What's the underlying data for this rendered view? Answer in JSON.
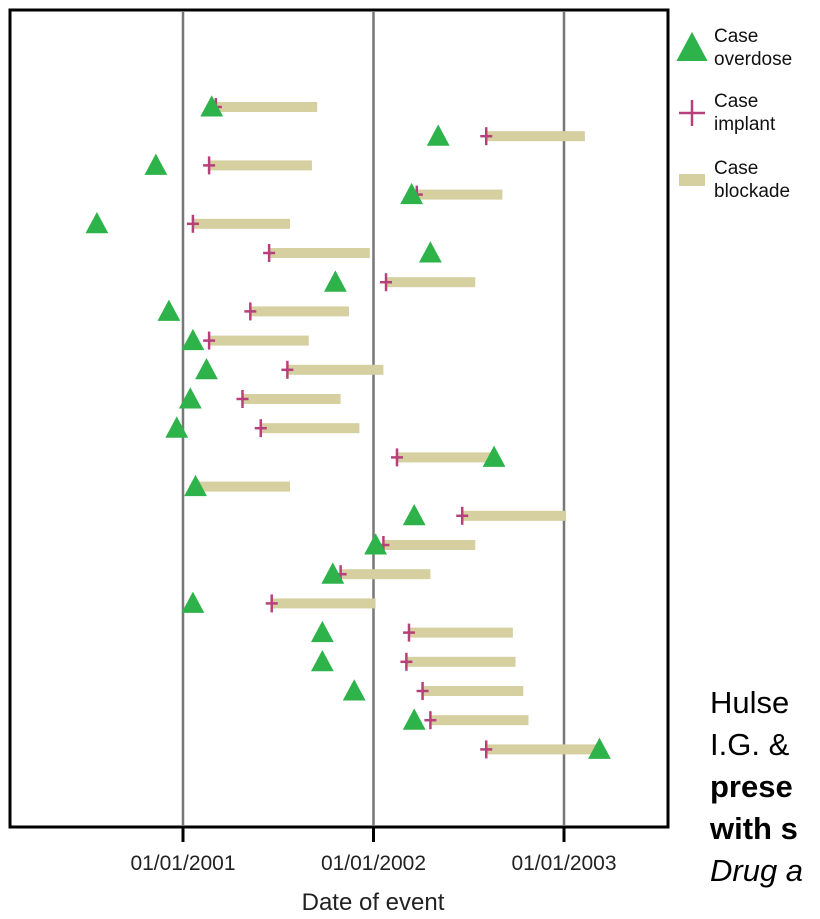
{
  "chart_data": {
    "type": "scatter",
    "title": "",
    "xlabel": "Date of event",
    "ylabel": "",
    "x_axis": {
      "type": "date",
      "ticks": [
        "2001-01-01",
        "2002-01-01",
        "2003-01-01"
      ],
      "tick_labels": [
        "01/01/2001",
        "01/01/2002",
        "01/01/2003"
      ],
      "range": [
        "2000-02-15",
        "2003-07-15"
      ]
    },
    "grid": "vertical lines at tick dates",
    "legend": {
      "placement": "right",
      "entries": [
        {
          "label_lines": [
            "Case",
            "overdose"
          ],
          "marker": "triangle",
          "color": "#2db34a"
        },
        {
          "label_lines": [
            "Case",
            "implant"
          ],
          "marker": "plus",
          "color": "#b8407a"
        },
        {
          "label_lines": [
            "Case",
            "blockade"
          ],
          "marker": "bar",
          "color": "#d6cfa0"
        }
      ]
    },
    "colors": {
      "overdose": "#2db34a",
      "implant": "#b8407a",
      "blockade": "#d6cfa0"
    },
    "cases": [
      {
        "overdose": "2001-02-25",
        "implant": "2001-03-05",
        "blockade_end": "2001-09-15"
      },
      {
        "overdose": "2002-05-05",
        "implant": "2002-08-05",
        "blockade_end": "2003-02-10"
      },
      {
        "overdose": "2000-11-10",
        "implant": "2001-02-20",
        "blockade_end": "2001-09-05"
      },
      {
        "overdose": "2002-03-15",
        "implant": "2002-03-25",
        "blockade_end": "2002-09-05"
      },
      {
        "overdose": "2000-07-20",
        "implant": "2001-01-20",
        "blockade_end": "2001-07-25"
      },
      {
        "overdose": "2002-04-20",
        "implant": "2001-06-15",
        "blockade_end": "2001-12-25"
      },
      {
        "overdose": "2001-10-20",
        "implant": "2002-01-25",
        "blockade_end": "2002-07-15"
      },
      {
        "overdose": "2000-12-05",
        "implant": "2001-05-10",
        "blockade_end": "2001-11-15"
      },
      {
        "overdose": "2001-01-20",
        "implant": "2001-02-20",
        "blockade_end": "2001-08-30"
      },
      {
        "overdose": "2001-02-15",
        "implant": "2001-07-20",
        "blockade_end": "2002-01-20"
      },
      {
        "overdose": "2001-01-15",
        "implant": "2001-04-25",
        "blockade_end": "2001-10-30"
      },
      {
        "overdose": "2000-12-20",
        "implant": "2001-05-30",
        "blockade_end": "2001-12-05"
      },
      {
        "overdose": "2002-08-20",
        "implant": "2002-02-15",
        "blockade_end": "2002-08-15"
      },
      {
        "overdose": "2001-01-25",
        "implant": "2001-01-25",
        "blockade_end": "2001-07-25"
      },
      {
        "overdose": "2002-03-20",
        "implant": "2002-06-20",
        "blockade_end": "2003-01-05"
      },
      {
        "overdose": "2002-01-05",
        "implant": "2002-01-20",
        "blockade_end": "2002-07-15"
      },
      {
        "overdose": "2001-10-15",
        "implant": "2001-10-30",
        "blockade_end": "2002-04-20"
      },
      {
        "overdose": "2001-01-20",
        "implant": "2001-06-20",
        "blockade_end": "2002-01-05"
      },
      {
        "overdose": "2001-09-25",
        "implant": "2002-03-10",
        "blockade_end": "2002-09-25"
      },
      {
        "overdose": "2001-09-25",
        "implant": "2002-03-05",
        "blockade_end": "2002-09-30"
      },
      {
        "overdose": "2001-11-25",
        "implant": "2002-04-05",
        "blockade_end": "2002-10-15"
      },
      {
        "overdose": "2002-03-20",
        "implant": "2002-04-20",
        "blockade_end": "2002-10-25"
      },
      {
        "overdose": "2003-03-10",
        "implant": "2002-08-05",
        "blockade_end": "2003-03-05"
      }
    ]
  },
  "citation": {
    "line1": "Hulse",
    "line2": "I.G. &",
    "line3": "prese",
    "line4": "with s",
    "line5": "Drug a"
  }
}
